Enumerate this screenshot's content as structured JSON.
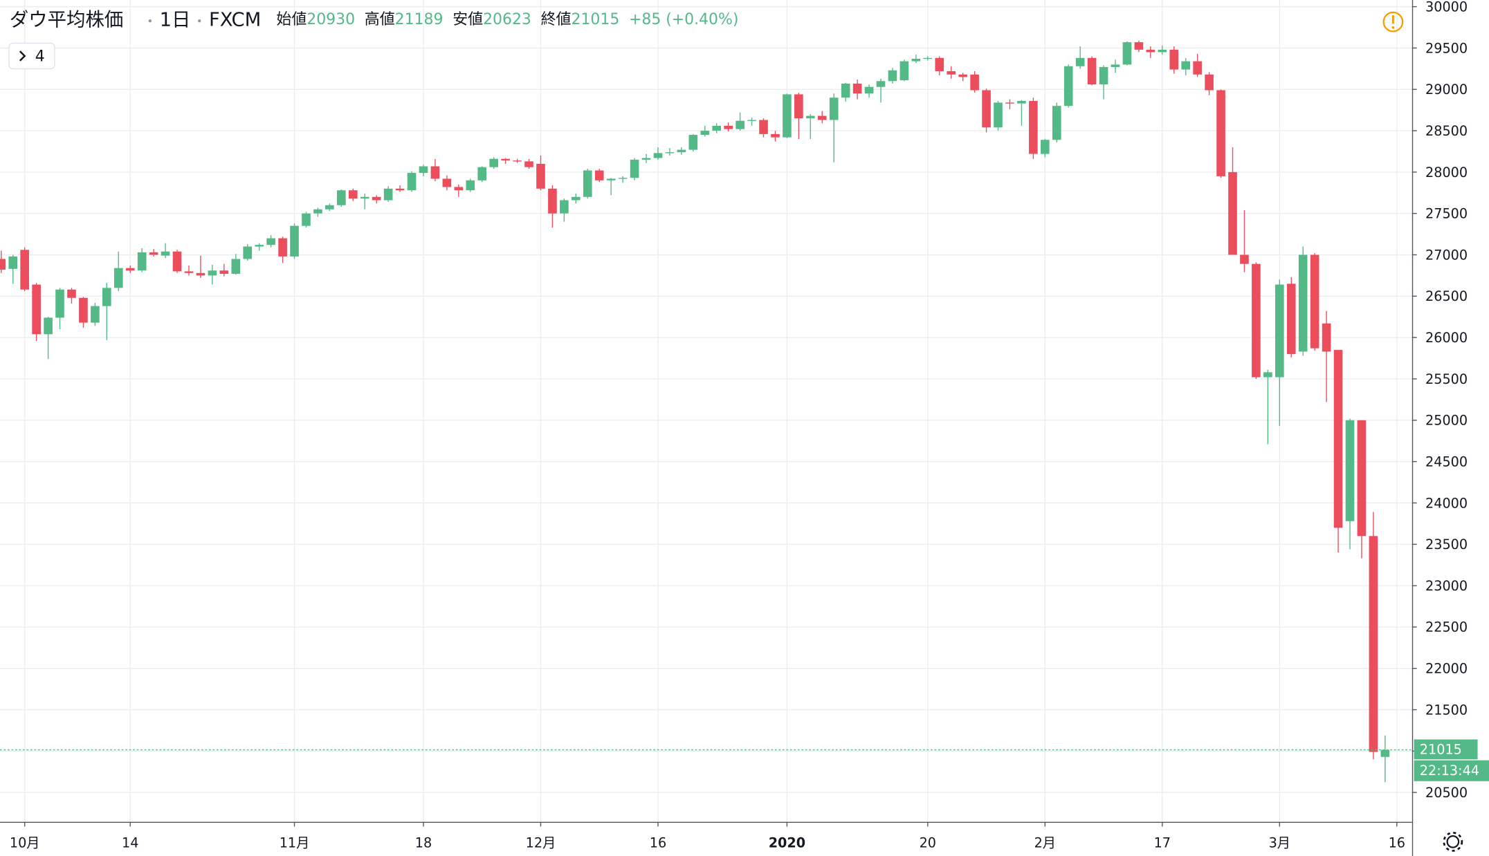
{
  "chart_data": {
    "type": "candlestick",
    "title": "ダウ平均株価",
    "interval": "1日",
    "source": "FXCM",
    "legend": {
      "open_label": "始値",
      "open": 20930,
      "high_label": "高値",
      "high": 21189,
      "low_label": "安値",
      "low": 20623,
      "close_label": "終値",
      "close": 21015,
      "change": 85,
      "change_label": "+85",
      "change_pct": 0.4,
      "change_pct_label": "(+0.40%)"
    },
    "indicators_count": 4,
    "last_price": 21015,
    "countdown": "22:13:44",
    "up_color": "#53b987",
    "down_color": "#eb4d5c",
    "grid": true,
    "ylim": [
      20145,
      30000
    ],
    "yticks": [
      20500,
      21000,
      21500,
      22000,
      22500,
      23000,
      23500,
      24000,
      24500,
      25000,
      25500,
      26000,
      26500,
      27000,
      27500,
      28000,
      28500,
      29000,
      29500,
      30000
    ],
    "categories": [
      null,
      null,
      "10月",
      null,
      null,
      null,
      null,
      null,
      null,
      null,
      null,
      "14",
      null,
      null,
      null,
      null,
      null,
      null,
      null,
      null,
      null,
      null,
      null,
      null,
      null,
      "11月",
      null,
      null,
      null,
      null,
      null,
      null,
      null,
      null,
      null,
      null,
      "18",
      null,
      null,
      null,
      null,
      null,
      null,
      null,
      null,
      null,
      "12月",
      null,
      null,
      null,
      null,
      null,
      null,
      null,
      null,
      null,
      "16",
      null,
      null,
      null,
      null,
      null,
      null,
      null,
      null,
      null,
      null,
      "2020",
      null,
      null,
      null,
      null,
      null,
      null,
      null,
      null,
      null,
      null,
      null,
      "20",
      null,
      null,
      null,
      null,
      null,
      null,
      null,
      null,
      null,
      "2月",
      null,
      null,
      null,
      null,
      null,
      null,
      null,
      null,
      null,
      "17",
      null,
      null,
      null,
      null,
      null,
      null,
      null,
      null,
      null,
      "3月",
      null,
      null,
      null,
      null,
      null,
      null,
      null,
      null,
      null,
      "16"
    ],
    "bold_categories": [
      "2020"
    ],
    "ohlc": [
      [
        26950,
        27050,
        26780,
        26820
      ],
      [
        26830,
        27000,
        26650,
        26980
      ],
      [
        27060,
        27090,
        26560,
        26580
      ],
      [
        26640,
        26660,
        25960,
        26040
      ],
      [
        26040,
        26250,
        25740,
        26240
      ],
      [
        26240,
        26600,
        26100,
        26580
      ],
      [
        26580,
        26600,
        26410,
        26480
      ],
      [
        26480,
        26490,
        26120,
        26180
      ],
      [
        26180,
        26420,
        26140,
        26380
      ],
      [
        26380,
        26660,
        25970,
        26600
      ],
      [
        26600,
        27040,
        26560,
        26840
      ],
      [
        26840,
        26870,
        26780,
        26810
      ],
      [
        26810,
        27080,
        26790,
        27030
      ],
      [
        27030,
        27070,
        26980,
        27000
      ],
      [
        26990,
        27140,
        26960,
        27040
      ],
      [
        27040,
        27060,
        26780,
        26800
      ],
      [
        26800,
        26870,
        26750,
        26780
      ],
      [
        26780,
        26990,
        26720,
        26750
      ],
      [
        26750,
        26880,
        26640,
        26810
      ],
      [
        26810,
        26890,
        26740,
        26770
      ],
      [
        26770,
        27010,
        26760,
        26950
      ],
      [
        26950,
        27130,
        26930,
        27100
      ],
      [
        27100,
        27140,
        27050,
        27120
      ],
      [
        27120,
        27240,
        27090,
        27200
      ],
      [
        27200,
        27220,
        26900,
        26980
      ],
      [
        26980,
        27380,
        26950,
        27350
      ],
      [
        27350,
        27520,
        27330,
        27500
      ],
      [
        27500,
        27570,
        27460,
        27550
      ],
      [
        27550,
        27620,
        27530,
        27600
      ],
      [
        27600,
        27790,
        27580,
        27780
      ],
      [
        27780,
        27800,
        27650,
        27680
      ],
      [
        27680,
        27740,
        27550,
        27700
      ],
      [
        27700,
        27720,
        27620,
        27660
      ],
      [
        27660,
        27830,
        27640,
        27800
      ],
      [
        27800,
        27840,
        27760,
        27780
      ],
      [
        27780,
        28010,
        27760,
        27990
      ],
      [
        27990,
        28090,
        27950,
        28070
      ],
      [
        28070,
        28160,
        27890,
        27920
      ],
      [
        27920,
        27960,
        27780,
        27820
      ],
      [
        27820,
        27850,
        27700,
        27780
      ],
      [
        27780,
        27920,
        27760,
        27900
      ],
      [
        27900,
        28070,
        27880,
        28060
      ],
      [
        28060,
        28180,
        28040,
        28160
      ],
      [
        28160,
        28170,
        28100,
        28140
      ],
      [
        28140,
        28160,
        28110,
        28130
      ],
      [
        28130,
        28160,
        28040,
        28060
      ],
      [
        28100,
        28200,
        27780,
        27800
      ],
      [
        27800,
        27840,
        27330,
        27500
      ],
      [
        27500,
        27680,
        27400,
        27660
      ],
      [
        27660,
        27740,
        27620,
        27700
      ],
      [
        27700,
        28040,
        27680,
        28020
      ],
      [
        28020,
        28040,
        27880,
        27900
      ],
      [
        27900,
        27930,
        27720,
        27920
      ],
      [
        27920,
        27950,
        27870,
        27930
      ],
      [
        27930,
        28170,
        27900,
        28150
      ],
      [
        28150,
        28220,
        28110,
        28170
      ],
      [
        28170,
        28300,
        28150,
        28230
      ],
      [
        28230,
        28290,
        28200,
        28240
      ],
      [
        28240,
        28300,
        28210,
        28270
      ],
      [
        28270,
        28460,
        28250,
        28450
      ],
      [
        28450,
        28560,
        28430,
        28500
      ],
      [
        28500,
        28590,
        28470,
        28560
      ],
      [
        28560,
        28600,
        28490,
        28520
      ],
      [
        28520,
        28720,
        28500,
        28620
      ],
      [
        28620,
        28660,
        28560,
        28630
      ],
      [
        28630,
        28650,
        28420,
        28460
      ],
      [
        28460,
        28500,
        28370,
        28420
      ],
      [
        28420,
        28950,
        28410,
        28940
      ],
      [
        28940,
        28960,
        28400,
        28650
      ],
      [
        28650,
        28700,
        28400,
        28680
      ],
      [
        28680,
        28740,
        28590,
        28630
      ],
      [
        28630,
        28950,
        28120,
        28900
      ],
      [
        28900,
        29080,
        28850,
        29070
      ],
      [
        29070,
        29120,
        28880,
        28950
      ],
      [
        28950,
        29060,
        28900,
        29030
      ],
      [
        29030,
        29130,
        28840,
        29100
      ],
      [
        29100,
        29260,
        29070,
        29230
      ],
      [
        29110,
        29360,
        29100,
        29340
      ],
      [
        29340,
        29420,
        29320,
        29370
      ],
      [
        29370,
        29400,
        29350,
        29380
      ],
      [
        29380,
        29400,
        29170,
        29220
      ],
      [
        29220,
        29280,
        29130,
        29180
      ],
      [
        29180,
        29200,
        29100,
        29150
      ],
      [
        29180,
        29220,
        28960,
        28990
      ],
      [
        28990,
        29010,
        28480,
        28540
      ],
      [
        28540,
        28860,
        28500,
        28840
      ],
      [
        28840,
        28880,
        28760,
        28830
      ],
      [
        28830,
        28870,
        28560,
        28860
      ],
      [
        28860,
        28900,
        28160,
        28220
      ],
      [
        28220,
        28400,
        28180,
        28390
      ],
      [
        28390,
        28840,
        28360,
        28800
      ],
      [
        28800,
        29300,
        28780,
        29280
      ],
      [
        29280,
        29520,
        29250,
        29380
      ],
      [
        29380,
        29400,
        29050,
        29060
      ],
      [
        29060,
        29290,
        28880,
        29270
      ],
      [
        29270,
        29360,
        29200,
        29300
      ],
      [
        29300,
        29580,
        29290,
        29570
      ],
      [
        29570,
        29590,
        29450,
        29480
      ],
      [
        29480,
        29520,
        29380,
        29450
      ],
      [
        29450,
        29530,
        29420,
        29480
      ],
      [
        29480,
        29520,
        29190,
        29240
      ],
      [
        29240,
        29380,
        29170,
        29340
      ],
      [
        29340,
        29430,
        29150,
        29180
      ],
      [
        29180,
        29210,
        28930,
        28990
      ],
      [
        28990,
        29000,
        27930,
        27950
      ],
      [
        28000,
        28300,
        27000,
        27000
      ],
      [
        27000,
        27540,
        26790,
        26890
      ],
      [
        26890,
        26910,
        25500,
        25520
      ],
      [
        25520,
        25610,
        24710,
        25580
      ],
      [
        25520,
        26700,
        24930,
        26640
      ],
      [
        26650,
        26730,
        25760,
        25800
      ],
      [
        25830,
        27100,
        25780,
        27000
      ],
      [
        27000,
        27020,
        25840,
        25870
      ],
      [
        26170,
        26320,
        25220,
        25830
      ],
      [
        25850,
        25850,
        23400,
        23700
      ],
      [
        23780,
        25020,
        23440,
        25000
      ],
      [
        25000,
        25000,
        23330,
        23600
      ],
      [
        23600,
        23890,
        20900,
        20990
      ],
      [
        20930,
        21189,
        20623,
        21015
      ],
      null
    ]
  }
}
